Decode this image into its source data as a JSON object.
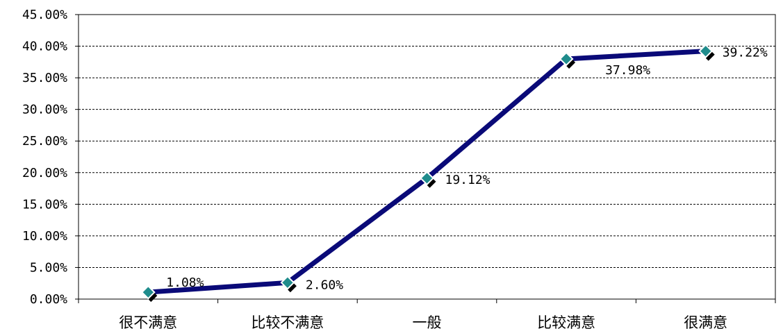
{
  "chart_data": {
    "type": "line",
    "categories": [
      "很不满意",
      "比较不满意",
      "一般",
      "比较满意",
      "很满意"
    ],
    "values": [
      1.08,
      2.6,
      19.12,
      37.98,
      39.22
    ],
    "data_labels": [
      "1.08%",
      "2.60%",
      "19.12%",
      "37.98%",
      "39.22%"
    ],
    "y_ticks": [
      "0.00%",
      "5.00%",
      "10.00%",
      "15.00%",
      "20.00%",
      "25.00%",
      "30.00%",
      "35.00%",
      "40.00%",
      "45.00%"
    ],
    "ylim": [
      0,
      45
    ],
    "y_tick_step": 5,
    "grid": true,
    "legend": "none",
    "title": "",
    "xlabel": "",
    "ylabel": "",
    "colors": {
      "line": "#0a0a78",
      "marker_fill": "#1f8c8c",
      "marker_border": "#ffffff",
      "marker_shadow": "#000000",
      "grid": "#000000",
      "axis": "#000000"
    }
  }
}
